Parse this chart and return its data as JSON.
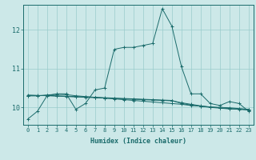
{
  "xlabel": "Humidex (Indice chaleur)",
  "background_color": "#cce8e8",
  "grid_color": "#99cccc",
  "line_color": "#1a6b6b",
  "xlim": [
    -0.5,
    23.5
  ],
  "ylim": [
    9.55,
    12.65
  ],
  "yticks": [
    10,
    11,
    12
  ],
  "xticks": [
    0,
    1,
    2,
    3,
    4,
    5,
    6,
    7,
    8,
    9,
    10,
    11,
    12,
    13,
    14,
    15,
    16,
    17,
    18,
    19,
    20,
    21,
    22,
    23
  ],
  "series1": [
    9.7,
    9.9,
    10.3,
    10.35,
    10.35,
    9.95,
    10.1,
    10.45,
    10.5,
    11.5,
    11.55,
    11.55,
    11.6,
    11.65,
    12.55,
    12.1,
    11.05,
    10.35,
    10.35,
    10.1,
    10.05,
    10.15,
    10.1,
    9.9
  ],
  "series2": [
    10.3,
    10.3,
    10.32,
    10.34,
    10.33,
    10.3,
    10.28,
    10.26,
    10.24,
    10.22,
    10.2,
    10.18,
    10.16,
    10.14,
    10.12,
    10.1,
    10.08,
    10.05,
    10.03,
    10.01,
    10.0,
    9.99,
    9.97,
    9.95
  ],
  "series3": [
    10.32,
    10.31,
    10.3,
    10.29,
    10.28,
    10.27,
    10.26,
    10.25,
    10.24,
    10.23,
    10.22,
    10.21,
    10.2,
    10.19,
    10.18,
    10.17,
    10.12,
    10.08,
    10.04,
    10.01,
    9.99,
    9.97,
    9.96,
    9.94
  ],
  "series4": [
    10.3,
    10.3,
    10.31,
    10.3,
    10.29,
    10.28,
    10.27,
    10.26,
    10.25,
    10.24,
    10.23,
    10.22,
    10.21,
    10.2,
    10.19,
    10.18,
    10.1,
    10.06,
    10.03,
    10.0,
    9.98,
    9.96,
    9.95,
    9.93
  ],
  "xlabel_fontsize": 6,
  "tick_fontsize": 5,
  "ytick_fontsize": 6
}
